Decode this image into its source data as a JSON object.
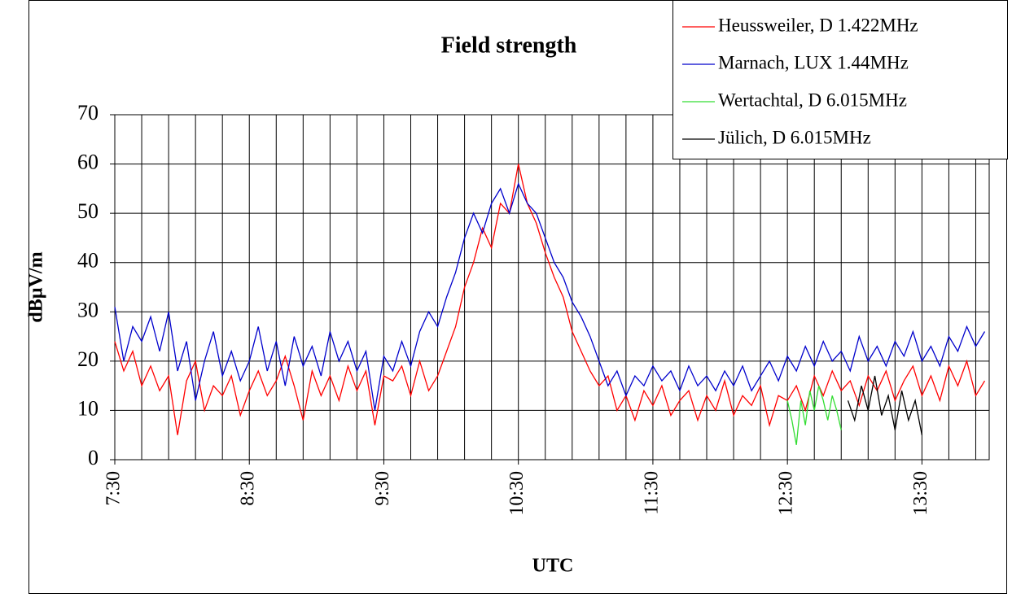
{
  "chart_data": {
    "type": "line",
    "title": "Field strength",
    "xlabel": "UTC",
    "ylabel": "dBµV/m",
    "xlim": [
      450,
      840
    ],
    "xticks": [
      {
        "value": 450,
        "label": "7:30"
      },
      {
        "value": 510,
        "label": "8:30"
      },
      {
        "value": 570,
        "label": "9:30"
      },
      {
        "value": 630,
        "label": "10:30"
      },
      {
        "value": 690,
        "label": "11:30"
      },
      {
        "value": 750,
        "label": "12:30"
      },
      {
        "value": 810,
        "label": "13:30"
      }
    ],
    "x_minor_ticks": [
      462,
      474,
      486,
      498,
      522,
      534,
      546,
      558,
      582,
      594,
      606,
      618,
      642,
      654,
      666,
      678,
      702,
      714,
      726,
      738,
      762,
      774,
      786,
      798,
      822,
      834
    ],
    "ylim": [
      0,
      70
    ],
    "yticks": [
      0,
      10,
      20,
      30,
      40,
      50,
      60,
      70
    ],
    "grid": true,
    "legend": "top-right",
    "series": [
      {
        "name": "Heussweiler, D 1.422MHz",
        "color": "#ff0000",
        "x": [
          450,
          454,
          458,
          462,
          466,
          470,
          474,
          478,
          482,
          486,
          490,
          494,
          498,
          502,
          506,
          510,
          514,
          518,
          522,
          526,
          530,
          534,
          538,
          542,
          546,
          550,
          554,
          558,
          562,
          566,
          570,
          574,
          578,
          582,
          586,
          590,
          594,
          598,
          602,
          606,
          610,
          614,
          618,
          622,
          626,
          630,
          634,
          638,
          642,
          646,
          650,
          654,
          658,
          662,
          666,
          670,
          674,
          678,
          682,
          686,
          690,
          694,
          698,
          702,
          706,
          710,
          714,
          718,
          722,
          726,
          730,
          734,
          738,
          742,
          746,
          750,
          754,
          758,
          762,
          766,
          770,
          774,
          778,
          782,
          786,
          790,
          794,
          798,
          802,
          806,
          810,
          814,
          818,
          822,
          826,
          830,
          834,
          838
        ],
        "values": [
          24,
          18,
          22,
          15,
          19,
          14,
          17,
          5,
          16,
          20,
          10,
          15,
          13,
          17,
          9,
          14,
          18,
          13,
          16,
          21,
          15,
          8,
          18,
          13,
          17,
          12,
          19,
          14,
          18,
          7,
          17,
          16,
          19,
          13,
          20,
          14,
          17,
          22,
          27,
          35,
          40,
          47,
          43,
          52,
          50,
          60,
          52,
          48,
          42,
          37,
          33,
          26,
          22,
          18,
          15,
          17,
          10,
          13,
          8,
          14,
          11,
          15,
          9,
          12,
          14,
          8,
          13,
          10,
          16,
          9,
          13,
          11,
          15,
          7,
          13,
          12,
          15,
          10,
          17,
          13,
          18,
          14,
          16,
          11,
          17,
          14,
          18,
          12,
          16,
          19,
          13,
          17,
          12,
          19,
          15,
          20,
          13,
          16
        ]
      },
      {
        "name": "Marnach, LUX 1.44MHz",
        "color": "#0000cc",
        "x": [
          450,
          454,
          458,
          462,
          466,
          470,
          474,
          478,
          482,
          486,
          490,
          494,
          498,
          502,
          506,
          510,
          514,
          518,
          522,
          526,
          530,
          534,
          538,
          542,
          546,
          550,
          554,
          558,
          562,
          566,
          570,
          574,
          578,
          582,
          586,
          590,
          594,
          598,
          602,
          606,
          610,
          614,
          618,
          622,
          626,
          630,
          634,
          638,
          642,
          646,
          650,
          654,
          658,
          662,
          666,
          670,
          674,
          678,
          682,
          686,
          690,
          694,
          698,
          702,
          706,
          710,
          714,
          718,
          722,
          726,
          730,
          734,
          738,
          742,
          746,
          750,
          754,
          758,
          762,
          766,
          770,
          774,
          778,
          782,
          786,
          790,
          794,
          798,
          802,
          806,
          810,
          814,
          818,
          822,
          826,
          830,
          834,
          838
        ],
        "values": [
          31,
          20,
          27,
          24,
          29,
          22,
          30,
          18,
          24,
          12,
          20,
          26,
          17,
          22,
          16,
          20,
          27,
          18,
          24,
          15,
          25,
          19,
          23,
          17,
          26,
          20,
          24,
          18,
          22,
          10,
          21,
          18,
          24,
          19,
          26,
          30,
          27,
          33,
          38,
          45,
          50,
          46,
          52,
          55,
          50,
          56,
          52,
          50,
          45,
          40,
          37,
          32,
          29,
          25,
          20,
          15,
          18,
          13,
          17,
          15,
          19,
          16,
          18,
          14,
          19,
          15,
          17,
          14,
          18,
          15,
          19,
          14,
          17,
          20,
          16,
          21,
          18,
          23,
          19,
          24,
          20,
          22,
          18,
          25,
          20,
          23,
          19,
          24,
          21,
          26,
          20,
          23,
          19,
          25,
          22,
          27,
          23,
          26
        ]
      },
      {
        "name": "Wertachtal, D 6.015MHz",
        "color": "#33dd33",
        "x": [
          750,
          752,
          754,
          756,
          758,
          760,
          762,
          764,
          766,
          768,
          770,
          772,
          774
        ],
        "values": [
          12,
          8,
          3,
          12,
          7,
          14,
          10,
          15,
          12,
          8,
          13,
          10,
          6
        ]
      },
      {
        "name": "Jülich, D 6.015MHz",
        "color": "#000000",
        "x": [
          777,
          780,
          783,
          786,
          789,
          792,
          795,
          798,
          801,
          804,
          807,
          810
        ],
        "values": [
          12,
          8,
          15,
          10,
          17,
          9,
          13,
          6,
          14,
          8,
          12,
          5
        ]
      }
    ]
  }
}
